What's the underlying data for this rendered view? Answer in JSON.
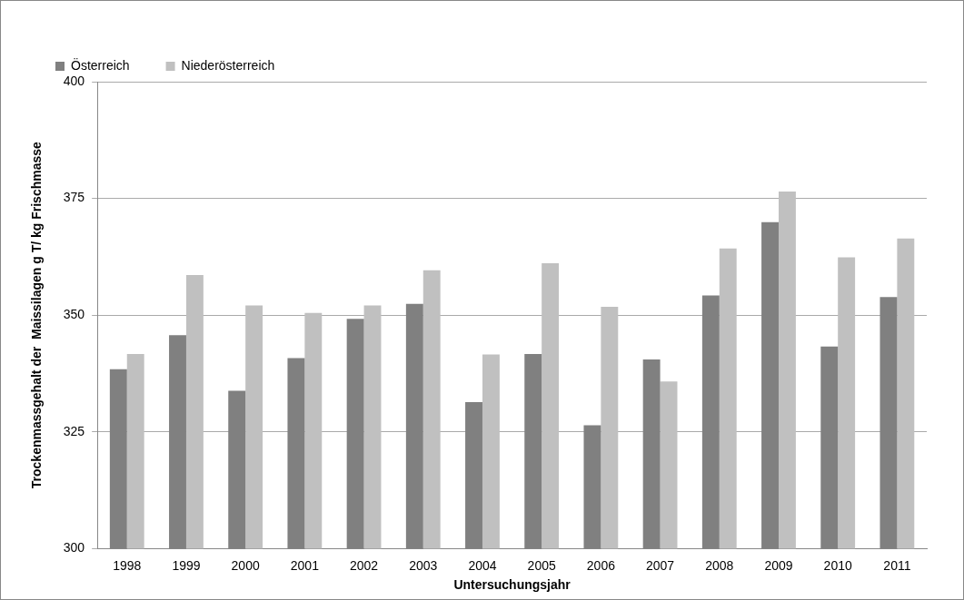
{
  "chart_data": {
    "type": "bar",
    "xlabel": "Untersuchungsjahr",
    "ylabel": "Trockenmassgehalt der  Maissilagen g T/ kg Frischmasse",
    "categories": [
      "1998",
      "1999",
      "2000",
      "2001",
      "2002",
      "2003",
      "2004",
      "2005",
      "2006",
      "2007",
      "2008",
      "2009",
      "2010",
      "2011"
    ],
    "series": [
      {
        "name": "Österreich",
        "color": "#808080",
        "values": [
          338.4,
          345.7,
          333.8,
          340.8,
          349.2,
          352.4,
          331.4,
          341.7,
          326.4,
          340.5,
          354.2,
          369.9,
          343.3,
          353.9
        ]
      },
      {
        "name": "Niederösterreich",
        "color": "#c0c0c0",
        "values": [
          341.7,
          358.6,
          352.1,
          350.5,
          352.1,
          359.6,
          341.6,
          361.1,
          351.8,
          335.8,
          364.3,
          376.5,
          362.4,
          366.4
        ]
      }
    ],
    "ylim": [
      300,
      400
    ],
    "yticks": [
      300,
      325,
      350,
      375,
      400
    ],
    "grid": "y",
    "legend": "top left"
  }
}
